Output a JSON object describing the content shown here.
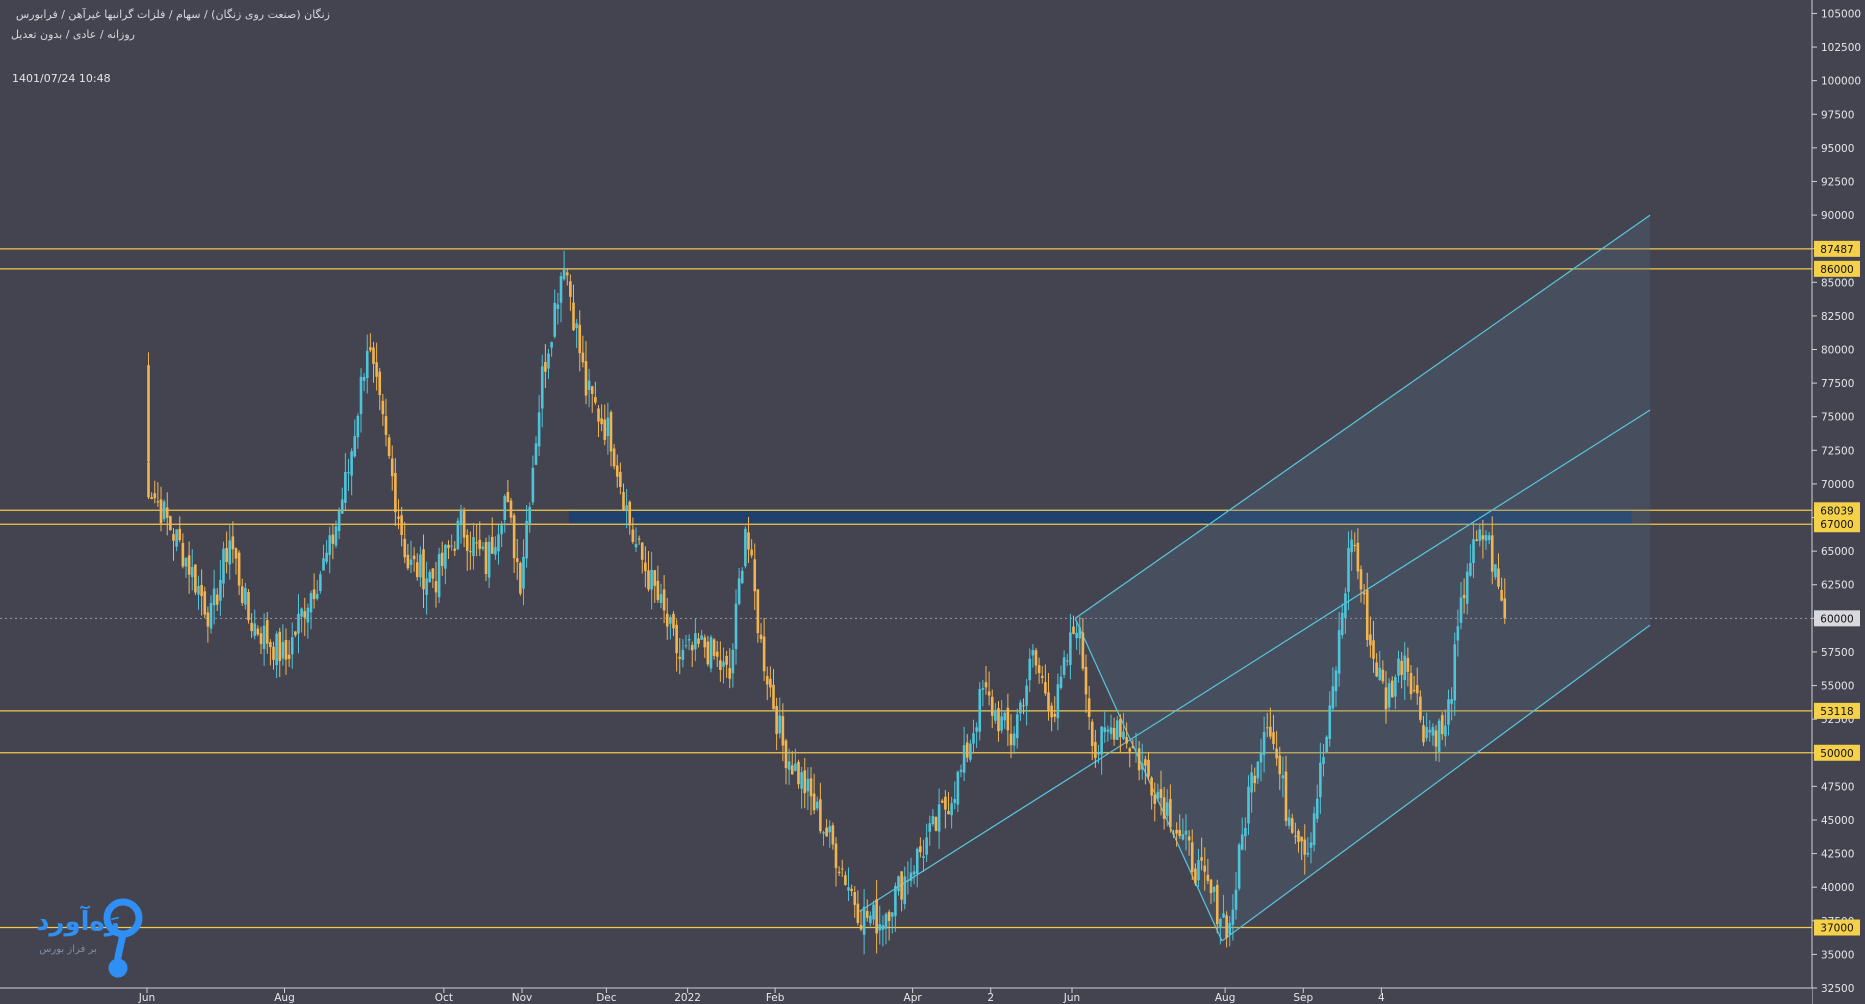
{
  "header": {
    "title": "زنگان (صنعت روی زنگان) / سهام / فلزات گرانبها غیرآهن / فرابورس",
    "subtitle": "روزانه / عادی / بدون تعدیل",
    "timestamp": "1401/07/24 10:48"
  },
  "logo": {
    "name": "ره آورد",
    "tagline": "بر فراز بورس"
  },
  "chart_data": {
    "type": "candlestick",
    "ylim": [
      32500,
      106000
    ],
    "y_ticks": [
      105000,
      102500,
      100000,
      97500,
      95000,
      92500,
      90000,
      87500,
      85000,
      82500,
      80000,
      77500,
      75000,
      72500,
      70000,
      67500,
      65000,
      62500,
      60000,
      57500,
      55000,
      52500,
      50000,
      47500,
      45000,
      42500,
      40000,
      37500,
      35000,
      32500
    ],
    "x_ticks": [
      {
        "label": "Jun",
        "i": 0
      },
      {
        "label": "Aug",
        "i": 44
      },
      {
        "label": "Oct",
        "i": 95
      },
      {
        "label": "Nov",
        "i": 120
      },
      {
        "label": "Dec",
        "i": 147
      },
      {
        "label": "2022",
        "i": 173
      },
      {
        "label": "Feb",
        "i": 201
      },
      {
        "label": "Apr",
        "i": 245
      },
      {
        "label": "2",
        "i": 270
      },
      {
        "label": "Jun",
        "i": 296
      },
      {
        "label": "Aug",
        "i": 345
      },
      {
        "label": "Sep",
        "i": 370
      },
      {
        "label": "4",
        "i": 395
      }
    ],
    "n_slots": 535,
    "current_price": 60000,
    "horizontal_levels": [
      87487,
      86000,
      68039,
      67000,
      53118,
      50000,
      37000
    ],
    "price_labels": [
      "87487",
      "86000",
      "68039",
      "67000",
      "53118",
      "50000",
      "37000",
      "60000"
    ],
    "resistance_zone": {
      "x_start": 135,
      "x_end": 475,
      "y_low": 67000,
      "y_high": 68039
    },
    "colors": {
      "up": "#4fc3d7",
      "down": "#f2b451",
      "level": "#f2c94c",
      "channel": "#57c7dd",
      "zone": "#1d4170",
      "background": "#444451",
      "label_bg": "#f5d14a"
    },
    "keypoints": [
      [
        0,
        79000
      ],
      [
        0,
        71500
      ],
      [
        0,
        70000
      ],
      [
        12,
        64500
      ],
      [
        20,
        60000
      ],
      [
        26,
        66000
      ],
      [
        32,
        60000
      ],
      [
        44,
        57000
      ],
      [
        50,
        61000
      ],
      [
        58,
        65000
      ],
      [
        64,
        71000
      ],
      [
        70,
        80500
      ],
      [
        76,
        73000
      ],
      [
        83,
        64000
      ],
      [
        92,
        63000
      ],
      [
        100,
        67000
      ],
      [
        108,
        64000
      ],
      [
        114,
        69000
      ],
      [
        119,
        63000
      ],
      [
        126,
        78000
      ],
      [
        133,
        87000
      ],
      [
        140,
        77000
      ],
      [
        148,
        73500
      ],
      [
        155,
        66000
      ],
      [
        162,
        62000
      ],
      [
        170,
        57000
      ],
      [
        178,
        58000
      ],
      [
        186,
        55500
      ],
      [
        191,
        67000
      ],
      [
        196,
        58000
      ],
      [
        203,
        50500
      ],
      [
        210,
        47500
      ],
      [
        220,
        42500
      ],
      [
        228,
        38000
      ],
      [
        234,
        37500
      ],
      [
        244,
        41500
      ],
      [
        252,
        44500
      ],
      [
        260,
        48500
      ],
      [
        267,
        54500
      ],
      [
        276,
        51000
      ],
      [
        283,
        57000
      ],
      [
        290,
        53000
      ],
      [
        297,
        60000
      ],
      [
        303,
        50000
      ],
      [
        310,
        52500
      ],
      [
        318,
        49000
      ],
      [
        326,
        46000
      ],
      [
        334,
        42000
      ],
      [
        342,
        38500
      ],
      [
        346,
        37000
      ],
      [
        352,
        47000
      ],
      [
        358,
        53000
      ],
      [
        364,
        46000
      ],
      [
        371,
        43000
      ],
      [
        378,
        52500
      ],
      [
        385,
        66500
      ],
      [
        391,
        58000
      ],
      [
        396,
        54000
      ],
      [
        402,
        57500
      ],
      [
        408,
        52000
      ],
      [
        415,
        51500
      ],
      [
        422,
        64000
      ],
      [
        428,
        66500
      ],
      [
        434,
        60000
      ]
    ],
    "channels": [
      {
        "name": "A",
        "points": [
          [
            228,
            38200
          ],
          [
            481,
            75500
          ]
        ]
      },
      {
        "name": "B",
        "points": [
          [
            297,
            60000
          ],
          [
            481,
            90000
          ]
        ]
      },
      {
        "name": "C",
        "points": [
          [
            344,
            36000
          ],
          [
            481,
            59500
          ]
        ]
      },
      {
        "name": "D",
        "points": [
          [
            297,
            60000
          ],
          [
            344,
            36000
          ]
        ]
      }
    ]
  }
}
